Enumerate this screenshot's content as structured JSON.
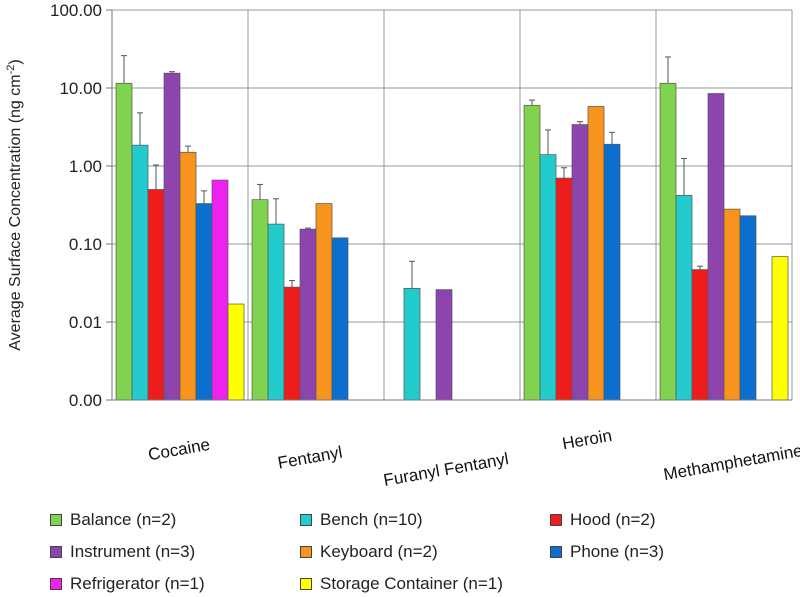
{
  "chart_data": {
    "type": "bar",
    "scale": "log",
    "ylabel": "Average Surface Concentration (ng cm",
    "ylabel_superscript": "-2",
    "ylabel_close": ")",
    "ylim": [
      0.001,
      100
    ],
    "yticks": [
      0.001,
      0.01,
      0.1,
      1,
      10,
      100
    ],
    "ytick_labels": [
      "0.00",
      "0.01",
      "0.10",
      "1.00",
      "10.00",
      "100.00"
    ],
    "grid": true,
    "categories": [
      "Cocaine",
      "Fentanyl",
      "Furanyl Fentanyl",
      "Heroin",
      "Methamphetamine"
    ],
    "series": [
      {
        "name": "Balance (n=2)",
        "color": "#7fd34e",
        "values": [
          11.5,
          0.37,
          null,
          6.0,
          11.5
        ],
        "err": [
          26,
          0.58,
          null,
          7.0,
          25
        ]
      },
      {
        "name": "Bench (n=10)",
        "color": "#22cccc",
        "values": [
          1.85,
          0.18,
          0.027,
          1.4,
          0.42
        ],
        "err": [
          4.8,
          0.38,
          0.06,
          2.9,
          1.25
        ]
      },
      {
        "name": "Hood (n=2)",
        "color": "#ee1c1c",
        "values": [
          0.5,
          0.028,
          null,
          0.7,
          0.047
        ],
        "err": [
          1.03,
          0.034,
          null,
          0.95,
          0.052
        ]
      },
      {
        "name": "Instrument (n=3)",
        "color": "#8e44ad",
        "values": [
          15.5,
          0.155,
          0.026,
          3.4,
          8.5
        ],
        "err": [
          16.2,
          0.16,
          null,
          3.7,
          null
        ]
      },
      {
        "name": "Keyboard (n=2)",
        "color": "#f7941d",
        "values": [
          1.5,
          0.33,
          null,
          5.8,
          0.28
        ],
        "err": [
          1.8,
          null,
          null,
          null,
          null
        ]
      },
      {
        "name": "Phone (n=3)",
        "color": "#0b6fcf",
        "values": [
          0.33,
          0.12,
          null,
          1.9,
          0.23
        ],
        "err": [
          0.48,
          null,
          null,
          2.7,
          null
        ]
      },
      {
        "name": "Refrigerator (n=1)",
        "color": "#ee22ee",
        "values": [
          0.66,
          null,
          null,
          null,
          null
        ],
        "err": [
          null,
          null,
          null,
          null,
          null
        ]
      },
      {
        "name": "Storage Container (n=1)",
        "color": "#ffff00",
        "values": [
          0.017,
          null,
          null,
          null,
          0.069
        ],
        "err": [
          null,
          null,
          null,
          null,
          null
        ]
      }
    ]
  }
}
